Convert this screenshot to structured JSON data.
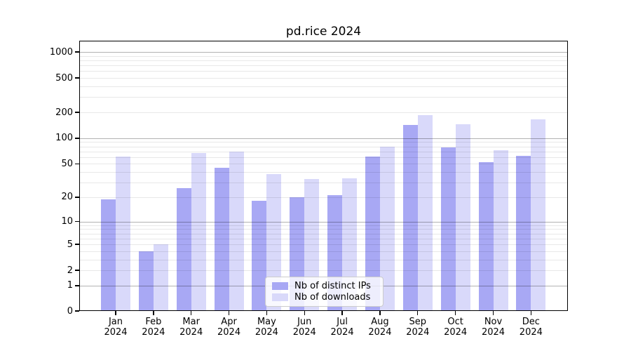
{
  "chart_data": {
    "type": "bar",
    "title": "pd.rice 2024",
    "categories": [
      "Jan 2024",
      "Feb 2024",
      "Mar 2024",
      "Apr 2024",
      "May 2024",
      "Jun 2024",
      "Jul 2024",
      "Aug 2024",
      "Sep 2024",
      "Oct 2024",
      "Nov 2024",
      "Dec 2024"
    ],
    "series": [
      {
        "name": "Nb of distinct IPs",
        "color": "#a8a8f4",
        "values": [
          19,
          4,
          26,
          45,
          18,
          20,
          21,
          61,
          142,
          78,
          52,
          62
        ]
      },
      {
        "name": "Nb of downloads",
        "color": "#d9d9fa",
        "values": [
          61,
          5,
          67,
          70,
          38,
          33,
          34,
          80,
          185,
          145,
          73,
          165
        ]
      }
    ],
    "xlabel": "",
    "ylabel": "",
    "y_ticks": [
      0,
      1,
      2,
      5,
      10,
      20,
      50,
      100,
      200,
      500,
      1000
    ],
    "y_scale": "log10(value+1)",
    "ylim": [
      0,
      1350
    ],
    "grid": "horizontal major (1,10,100,1000) + minor (2-9 per decade), drawn over bars",
    "legend_position": "lower center"
  }
}
